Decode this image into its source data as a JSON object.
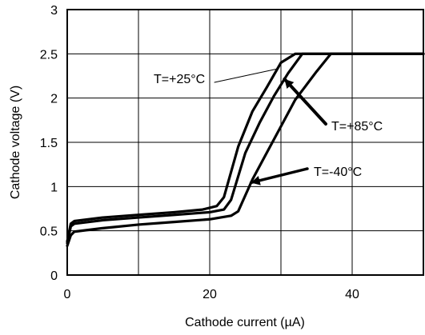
{
  "chart_data": {
    "type": "line",
    "title": "",
    "xlabel": "Cathode current (µA)",
    "ylabel": "Cathode voltage (V)",
    "xlim": [
      0,
      50
    ],
    "ylim": [
      0,
      3
    ],
    "xticks": [
      "0",
      "20",
      "40"
    ],
    "yticks": [
      "0",
      "0.5",
      "1",
      "1.5",
      "2",
      "2.5",
      "3"
    ],
    "grid": true,
    "legend": "none",
    "series_color": "#000000",
    "series": [
      {
        "name": "T=+25°C",
        "points": [
          [
            0,
            0.38
          ],
          [
            0.5,
            0.58
          ],
          [
            1,
            0.61
          ],
          [
            5,
            0.65
          ],
          [
            10,
            0.68
          ],
          [
            15,
            0.71
          ],
          [
            19,
            0.74
          ],
          [
            21,
            0.78
          ],
          [
            22,
            0.88
          ],
          [
            24,
            1.45
          ],
          [
            26,
            1.85
          ],
          [
            28,
            2.12
          ],
          [
            30,
            2.4
          ],
          [
            32,
            2.5
          ],
          [
            50,
            2.5
          ]
        ]
      },
      {
        "name": "T=+85°C",
        "points": [
          [
            0,
            0.36
          ],
          [
            0.5,
            0.55
          ],
          [
            1,
            0.58
          ],
          [
            5,
            0.62
          ],
          [
            10,
            0.65
          ],
          [
            15,
            0.68
          ],
          [
            20,
            0.71
          ],
          [
            22,
            0.74
          ],
          [
            23,
            0.85
          ],
          [
            25,
            1.38
          ],
          [
            27,
            1.72
          ],
          [
            29,
            2.02
          ],
          [
            31,
            2.28
          ],
          [
            33,
            2.5
          ],
          [
            50,
            2.5
          ]
        ]
      },
      {
        "name": "T=-40°C",
        "points": [
          [
            0,
            0.33
          ],
          [
            0.5,
            0.45
          ],
          [
            1,
            0.49
          ],
          [
            5,
            0.53
          ],
          [
            10,
            0.57
          ],
          [
            15,
            0.6
          ],
          [
            20,
            0.63
          ],
          [
            23,
            0.67
          ],
          [
            24,
            0.72
          ],
          [
            26,
            1.08
          ],
          [
            28,
            1.38
          ],
          [
            30,
            1.68
          ],
          [
            32,
            1.98
          ],
          [
            35,
            2.3
          ],
          [
            37,
            2.5
          ],
          [
            50,
            2.5
          ]
        ]
      }
    ],
    "annotations": [
      {
        "text": "T=+25°C",
        "series": "T=+25°C",
        "at_x": 29.5
      },
      {
        "text": "T=+85°C",
        "series": "T=+85°C",
        "at_x": 30.5
      },
      {
        "text": "T=-40°C",
        "series": "T=-40°C",
        "at_x": 25.8
      }
    ]
  }
}
